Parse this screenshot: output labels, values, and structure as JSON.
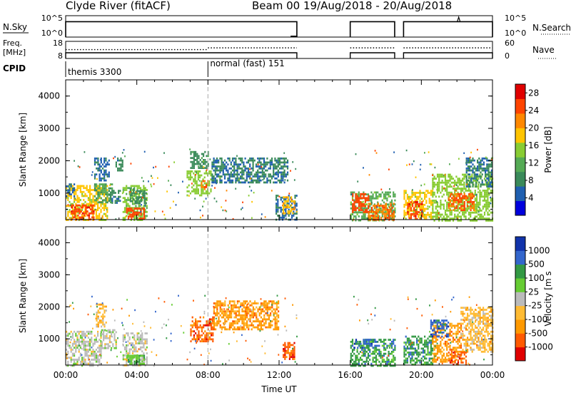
{
  "header": {
    "title": "Clyde River (fitACF)",
    "beam_info": "Beam 00  19/Aug/2018 - 20/Aug/2018"
  },
  "colors": {
    "axis": "#000000",
    "marker_line": "#aaaaaa",
    "power_scale": [
      "#0000dd",
      "#1f5fb0",
      "#3a8a5a",
      "#55aa55",
      "#88cc33",
      "#ffc400",
      "#ff8800",
      "#ff4400",
      "#e00000"
    ],
    "velocity_scale": [
      "#e00000",
      "#ff5a00",
      "#ff9900",
      "#ffbb33",
      "#bbbbbb",
      "#66cc33",
      "#339944",
      "#3366cc",
      "#1133aa"
    ]
  },
  "chart_data": [
    {
      "type": "line",
      "name": "status-panel-nsky",
      "left_label": "N.Sky",
      "left_ticks": [
        "10^5",
        "10^0"
      ],
      "right_label": "N.Search",
      "right_ticks": [
        "10^5",
        "10^0"
      ],
      "xlim": [
        0,
        24
      ],
      "series": [
        {
          "segments": [
            [
              0.0,
              13.0
            ],
            [
              16.0,
              18.5
            ],
            [
              19.0,
              24.0
            ]
          ],
          "level": 0.72
        },
        {
          "segments": [
            [
              12.65,
              13.0
            ]
          ],
          "level": 0.0
        }
      ],
      "spike_x": 22.1
    },
    {
      "type": "line",
      "name": "status-panel-freq",
      "left_label": "Freq. [MHz]",
      "left_ticks": [
        "18",
        "8"
      ],
      "right_label": "Nave",
      "right_ticks": [
        "60",
        "0"
      ],
      "xlim": [
        0,
        24
      ],
      "freq_segments": [
        [
          0.0,
          13.0
        ],
        [
          16.0,
          18.5
        ],
        [
          19.0,
          24.0
        ]
      ],
      "nave_segments": [
        [
          0.0,
          8.0,
          0.52
        ],
        [
          8.0,
          13.0,
          0.62
        ],
        [
          16.0,
          18.5,
          0.62
        ],
        [
          19.0,
          24.0,
          0.62
        ]
      ]
    },
    {
      "type": "table",
      "name": "cpid-strip",
      "label": "CPID",
      "entries": [
        {
          "x": 0.0,
          "text": "themis 3300"
        },
        {
          "x": 8.0,
          "text": "normal (fast) 151"
        }
      ]
    },
    {
      "type": "heatmap",
      "name": "power",
      "ylabel": "Slant Range [km]",
      "ylim": [
        180,
        4500
      ],
      "yticks": [
        1000,
        2000,
        3000,
        4000
      ],
      "xlim": [
        0,
        24
      ],
      "colorbar_label": "Power [dB]",
      "colorbar_ticks": [
        4,
        8,
        12,
        16,
        20,
        24,
        28
      ],
      "clim": [
        0,
        30
      ],
      "regions": [
        {
          "x": [
            0.0,
            2.3
          ],
          "y": [
            180,
            1250
          ],
          "v": 18
        },
        {
          "x": [
            0.3,
            1.6
          ],
          "y": [
            180,
            650
          ],
          "v": 27
        },
        {
          "x": [
            1.6,
            2.6
          ],
          "y": [
            700,
            1300
          ],
          "v": 10
        },
        {
          "x": [
            2.4,
            3.1
          ],
          "y": [
            700,
            1100
          ],
          "v": 6
        },
        {
          "x": [
            3.2,
            4.6
          ],
          "y": [
            180,
            1250
          ],
          "v": 14
        },
        {
          "x": [
            3.4,
            4.4
          ],
          "y": [
            180,
            550
          ],
          "v": 26
        },
        {
          "x": [
            3.6,
            4.5
          ],
          "y": [
            700,
            1150
          ],
          "v": 8
        },
        {
          "x": [
            1.6,
            2.4
          ],
          "y": [
            1400,
            2100
          ],
          "v": 5
        },
        {
          "x": [
            2.8,
            3.2
          ],
          "y": [
            1700,
            2100
          ],
          "v": 7
        },
        {
          "x": [
            6.8,
            8.2
          ],
          "y": [
            900,
            1700
          ],
          "v": 15
        },
        {
          "x": [
            7.6,
            8.0
          ],
          "y": [
            1100,
            1400
          ],
          "v": 24
        },
        {
          "x": [
            7.0,
            8.0
          ],
          "y": [
            1800,
            2300
          ],
          "v": 8
        },
        {
          "x": [
            8.2,
            12.5
          ],
          "y": [
            1300,
            2100
          ],
          "v": 6
        },
        {
          "x": [
            11.8,
            13.0
          ],
          "y": [
            180,
            950
          ],
          "v": 5
        },
        {
          "x": [
            12.2,
            12.9
          ],
          "y": [
            350,
            900
          ],
          "v": 20
        },
        {
          "x": [
            16.0,
            18.5
          ],
          "y": [
            180,
            1050
          ],
          "v": 12
        },
        {
          "x": [
            16.1,
            17.0
          ],
          "y": [
            400,
            1000
          ],
          "v": 26
        },
        {
          "x": [
            17.0,
            18.5
          ],
          "y": [
            180,
            700
          ],
          "v": 24
        },
        {
          "x": [
            19.0,
            20.6
          ],
          "y": [
            180,
            1100
          ],
          "v": 18
        },
        {
          "x": [
            19.2,
            20.0
          ],
          "y": [
            200,
            750
          ],
          "v": 27
        },
        {
          "x": [
            20.6,
            24.0
          ],
          "y": [
            180,
            1600
          ],
          "v": 15
        },
        {
          "x": [
            21.5,
            23.0
          ],
          "y": [
            500,
            1000
          ],
          "v": 25
        },
        {
          "x": [
            22.5,
            24.0
          ],
          "y": [
            1200,
            2100
          ],
          "v": 6
        },
        {
          "x": [
            0.0,
            0.5
          ],
          "y": [
            900,
            1300
          ],
          "v": 5
        }
      ]
    },
    {
      "type": "heatmap",
      "name": "velocity",
      "ylabel": "Slant Range [km]",
      "ylim": [
        180,
        4500
      ],
      "yticks": [
        1000,
        2000,
        3000,
        4000
      ],
      "xlim": [
        0,
        24
      ],
      "xticks": [
        "00:00",
        "04:00",
        "08:00",
        "12:00",
        "16:00",
        "20:00",
        "00:00"
      ],
      "xlabel": "Time UT",
      "colorbar_label": "Velocity [m s-1]",
      "colorbar_ticks": [
        "-1000",
        "-500",
        "-100",
        "-25",
        "25",
        "100",
        "500",
        "1000"
      ],
      "regions": [
        {
          "x": [
            0.0,
            2.0
          ],
          "y": [
            180,
            1250
          ],
          "v": 4
        },
        {
          "x": [
            2.0,
            2.8
          ],
          "y": [
            700,
            1300
          ],
          "v": 4
        },
        {
          "x": [
            3.2,
            4.6
          ],
          "y": [
            180,
            1200
          ],
          "v": 4
        },
        {
          "x": [
            3.4,
            4.4
          ],
          "y": [
            200,
            500
          ],
          "v": 5
        },
        {
          "x": [
            1.7,
            2.3
          ],
          "y": [
            1400,
            2100
          ],
          "v": 3
        },
        {
          "x": [
            7.0,
            8.3
          ],
          "y": [
            900,
            1700
          ],
          "v": 1
        },
        {
          "x": [
            8.3,
            12.0
          ],
          "y": [
            1300,
            2200
          ],
          "v": 2
        },
        {
          "x": [
            12.2,
            12.9
          ],
          "y": [
            350,
            900
          ],
          "v": 1
        },
        {
          "x": [
            16.0,
            18.5
          ],
          "y": [
            180,
            1000
          ],
          "v": 6
        },
        {
          "x": [
            16.2,
            17.5
          ],
          "y": [
            700,
            1000
          ],
          "v": 7
        },
        {
          "x": [
            19.0,
            20.6
          ],
          "y": [
            180,
            1100
          ],
          "v": 6
        },
        {
          "x": [
            20.6,
            22.2
          ],
          "y": [
            300,
            1500
          ],
          "v": 2
        },
        {
          "x": [
            22.2,
            24.0
          ],
          "y": [
            600,
            2000
          ],
          "v": 3
        },
        {
          "x": [
            21.5,
            22.5
          ],
          "y": [
            200,
            600
          ],
          "v": 1
        },
        {
          "x": [
            20.5,
            21.5
          ],
          "y": [
            1100,
            1600
          ],
          "v": 7
        }
      ]
    }
  ]
}
